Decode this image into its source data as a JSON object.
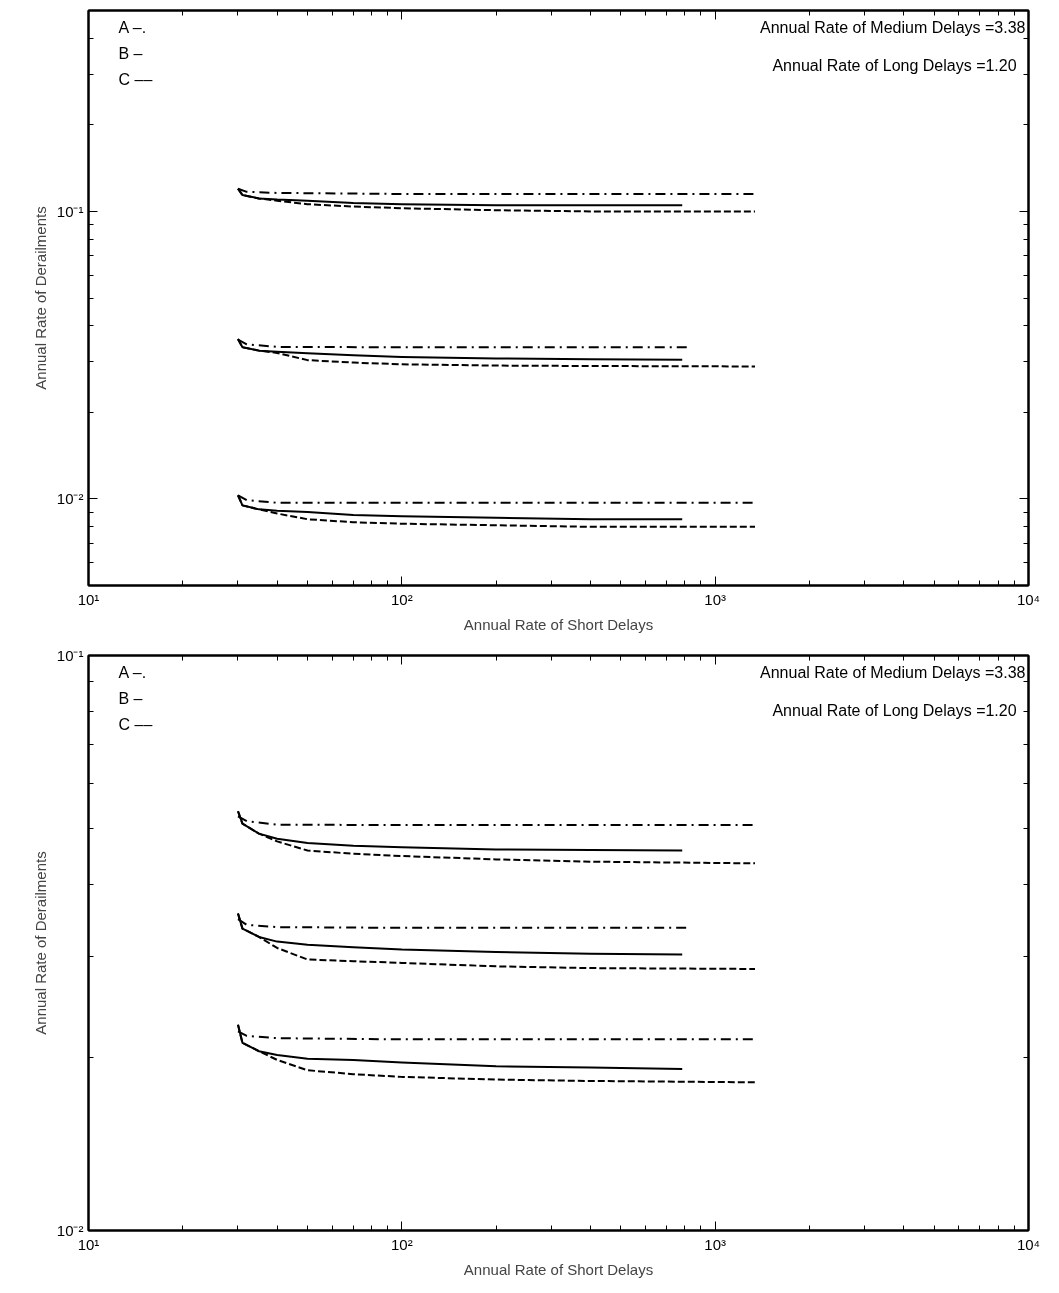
{
  "chart_data": [
    {
      "type": "line",
      "xlabel": "Annual Rate of Short Delays",
      "ylabel": "Annual Rate of Derailments",
      "annotations": [
        "A –.",
        "B –",
        "C ––",
        "Annual Rate of Medium Delays =3.38",
        "Annual Rate of Long Delays   =1.20"
      ],
      "log": "xy",
      "grid": false,
      "xlim": [
        10,
        10000
      ],
      "ylim": [
        0.005,
        0.5
      ],
      "xticks": [
        {
          "value": 10,
          "label": "10¹"
        },
        {
          "value": 20,
          "label": null
        },
        {
          "value": 30,
          "label": null
        },
        {
          "value": 40,
          "label": null
        },
        {
          "value": 50,
          "label": null
        },
        {
          "value": 60,
          "label": null
        },
        {
          "value": 70,
          "label": null
        },
        {
          "value": 80,
          "label": null
        },
        {
          "value": 90,
          "label": null
        },
        {
          "value": 100,
          "label": "10²"
        },
        {
          "value": 200,
          "label": null
        },
        {
          "value": 300,
          "label": null
        },
        {
          "value": 400,
          "label": null
        },
        {
          "value": 500,
          "label": null
        },
        {
          "value": 600,
          "label": null
        },
        {
          "value": 700,
          "label": null
        },
        {
          "value": 800,
          "label": null
        },
        {
          "value": 900,
          "label": null
        },
        {
          "value": 1000,
          "label": "10³"
        },
        {
          "value": 2000,
          "label": null
        },
        {
          "value": 3000,
          "label": null
        },
        {
          "value": 4000,
          "label": null
        },
        {
          "value": 5000,
          "label": null
        },
        {
          "value": 6000,
          "label": null
        },
        {
          "value": 7000,
          "label": null
        },
        {
          "value": 8000,
          "label": null
        },
        {
          "value": 9000,
          "label": null
        },
        {
          "value": 10000,
          "label": "10⁴"
        }
      ],
      "yticks": [
        {
          "value": 0.006,
          "label": null
        },
        {
          "value": 0.007,
          "label": null
        },
        {
          "value": 0.008,
          "label": null
        },
        {
          "value": 0.009,
          "label": null
        },
        {
          "value": 0.01,
          "label": "10⁻²"
        },
        {
          "value": 0.02,
          "label": null
        },
        {
          "value": 0.03,
          "label": null
        },
        {
          "value": 0.04,
          "label": null
        },
        {
          "value": 0.05,
          "label": null
        },
        {
          "value": 0.06,
          "label": null
        },
        {
          "value": 0.07,
          "label": null
        },
        {
          "value": 0.08,
          "label": null
        },
        {
          "value": 0.09,
          "label": null
        },
        {
          "value": 0.1,
          "label": "10⁻¹"
        },
        {
          "value": 0.2,
          "label": null
        },
        {
          "value": 0.3,
          "label": null
        },
        {
          "value": 0.4,
          "label": null
        }
      ],
      "series": [
        {
          "color": "#000000",
          "line_style": "dashdot",
          "x": [
            30,
            32,
            40,
            100,
            1340
          ],
          "values": [
            0.12,
            0.117,
            0.116,
            0.115,
            0.115
          ]
        },
        {
          "color": "#000000",
          "line_style": "solid",
          "x": [
            30,
            31,
            35,
            40,
            50,
            70,
            100,
            200,
            400,
            785
          ],
          "values": [
            0.12,
            0.114,
            0.111,
            0.11,
            0.109,
            0.107,
            0.106,
            0.105,
            0.105,
            0.105
          ]
        },
        {
          "color": "#000000",
          "line_style": "dashed",
          "x": [
            30,
            31,
            35,
            40,
            50,
            70,
            100,
            200,
            400,
            1340
          ],
          "values": [
            0.12,
            0.114,
            0.111,
            0.109,
            0.106,
            0.104,
            0.1026,
            0.101,
            0.1,
            0.1
          ]
        },
        {
          "color": "#000000",
          "line_style": "dashdot",
          "x": [
            30,
            32,
            40,
            100,
            830
          ],
          "values": [
            0.0358,
            0.0345,
            0.0338,
            0.0337,
            0.0337
          ]
        },
        {
          "color": "#000000",
          "line_style": "solid",
          "x": [
            30,
            31,
            35,
            40,
            50,
            70,
            100,
            200,
            400,
            785
          ],
          "values": [
            0.036,
            0.0337,
            0.0328,
            0.0325,
            0.0321,
            0.0316,
            0.0312,
            0.0308,
            0.0306,
            0.0305
          ]
        },
        {
          "color": "#000000",
          "line_style": "dashed",
          "x": [
            30,
            31,
            35,
            40,
            50,
            70,
            100,
            200,
            400,
            1340
          ],
          "values": [
            0.036,
            0.0337,
            0.0328,
            0.0322,
            0.0304,
            0.0298,
            0.0294,
            0.0291,
            0.029,
            0.0289
          ]
        },
        {
          "color": "#000000",
          "line_style": "dashdot",
          "x": [
            30,
            32,
            40,
            100,
            1340
          ],
          "values": [
            0.0103,
            0.0099,
            0.0097,
            0.0097,
            0.0097
          ]
        },
        {
          "color": "#000000",
          "line_style": "solid",
          "x": [
            30,
            31,
            35,
            40,
            50,
            70,
            100,
            200,
            400,
            785
          ],
          "values": [
            0.0103,
            0.0095,
            0.0092,
            0.0091,
            0.009,
            0.0088,
            0.0087,
            0.0086,
            0.0085,
            0.0085
          ]
        },
        {
          "color": "#000000",
          "line_style": "dashed",
          "x": [
            30,
            31,
            35,
            40,
            50,
            70,
            100,
            200,
            400,
            1340
          ],
          "values": [
            0.0103,
            0.0095,
            0.0092,
            0.0089,
            0.0085,
            0.0083,
            0.0082,
            0.0081,
            0.008,
            0.008
          ]
        }
      ]
    },
    {
      "type": "line",
      "xlabel": "Annual Rate of Short Delays",
      "ylabel": "Annual Rate of Derailments",
      "annotations": [
        "A –.",
        "B –",
        "C ––",
        "Annual Rate of Medium Delays =3.38",
        "Annual Rate of Long Delays   =1.20"
      ],
      "log": "xy",
      "grid": false,
      "xlim": [
        10,
        10000
      ],
      "ylim": [
        0.01,
        0.1
      ],
      "xticks": [
        {
          "value": 10,
          "label": "10¹"
        },
        {
          "value": 20,
          "label": null
        },
        {
          "value": 30,
          "label": null
        },
        {
          "value": 40,
          "label": null
        },
        {
          "value": 50,
          "label": null
        },
        {
          "value": 60,
          "label": null
        },
        {
          "value": 70,
          "label": null
        },
        {
          "value": 80,
          "label": null
        },
        {
          "value": 90,
          "label": null
        },
        {
          "value": 100,
          "label": "10²"
        },
        {
          "value": 200,
          "label": null
        },
        {
          "value": 300,
          "label": null
        },
        {
          "value": 400,
          "label": null
        },
        {
          "value": 500,
          "label": null
        },
        {
          "value": 600,
          "label": null
        },
        {
          "value": 700,
          "label": null
        },
        {
          "value": 800,
          "label": null
        },
        {
          "value": 900,
          "label": null
        },
        {
          "value": 1000,
          "label": "10³"
        },
        {
          "value": 2000,
          "label": null
        },
        {
          "value": 3000,
          "label": null
        },
        {
          "value": 4000,
          "label": null
        },
        {
          "value": 5000,
          "label": null
        },
        {
          "value": 6000,
          "label": null
        },
        {
          "value": 7000,
          "label": null
        },
        {
          "value": 8000,
          "label": null
        },
        {
          "value": 9000,
          "label": null
        },
        {
          "value": 10000,
          "label": "10⁴"
        }
      ],
      "yticks": [
        {
          "value": 0.01,
          "label": "10⁻²"
        },
        {
          "value": 0.02,
          "label": null
        },
        {
          "value": 0.03,
          "label": null
        },
        {
          "value": 0.04,
          "label": null
        },
        {
          "value": 0.05,
          "label": null
        },
        {
          "value": 0.06,
          "label": null
        },
        {
          "value": 0.07,
          "label": null
        },
        {
          "value": 0.08,
          "label": null
        },
        {
          "value": 0.09,
          "label": null
        },
        {
          "value": 0.1,
          "label": "10⁻¹"
        }
      ],
      "series": [
        {
          "color": "#000000",
          "line_style": "dashdot",
          "x": [
            30,
            32,
            40,
            100,
            1340
          ],
          "values": [
            0.0525,
            0.0515,
            0.0508,
            0.0507,
            0.0507
          ]
        },
        {
          "color": "#000000",
          "line_style": "solid",
          "x": [
            30,
            31,
            35,
            40,
            50,
            70,
            100,
            200,
            400,
            785
          ],
          "values": [
            0.0536,
            0.051,
            0.049,
            0.048,
            0.0472,
            0.0467,
            0.0464,
            0.046,
            0.0459,
            0.0458
          ]
        },
        {
          "color": "#000000",
          "line_style": "dashed",
          "x": [
            30,
            31,
            35,
            40,
            50,
            70,
            100,
            200,
            400,
            1340
          ],
          "values": [
            0.0536,
            0.051,
            0.049,
            0.0475,
            0.0458,
            0.0452,
            0.0448,
            0.0442,
            0.0438,
            0.0435
          ]
        },
        {
          "color": "#000000",
          "line_style": "dashdot",
          "x": [
            30,
            32,
            40,
            100,
            825
          ],
          "values": [
            0.0348,
            0.034,
            0.0337,
            0.0336,
            0.0336
          ]
        },
        {
          "color": "#000000",
          "line_style": "solid",
          "x": [
            30,
            31,
            35,
            40,
            50,
            70,
            100,
            200,
            400,
            785
          ],
          "values": [
            0.0356,
            0.0335,
            0.0324,
            0.0318,
            0.0314,
            0.0311,
            0.0308,
            0.0305,
            0.0303,
            0.0302
          ]
        },
        {
          "color": "#000000",
          "line_style": "dashed",
          "x": [
            30,
            31,
            35,
            40,
            50,
            70,
            100,
            200,
            400,
            1340
          ],
          "values": [
            0.0356,
            0.0335,
            0.0324,
            0.031,
            0.0296,
            0.0294,
            0.0292,
            0.0288,
            0.0286,
            0.0285
          ]
        },
        {
          "color": "#000000",
          "line_style": "dashdot",
          "x": [
            30,
            32,
            40,
            100,
            1340
          ],
          "values": [
            0.0222,
            0.0218,
            0.0216,
            0.0215,
            0.0215
          ]
        },
        {
          "color": "#000000",
          "line_style": "solid",
          "x": [
            30,
            31,
            35,
            40,
            50,
            70,
            100,
            200,
            400,
            785
          ],
          "values": [
            0.0228,
            0.0212,
            0.0205,
            0.0202,
            0.0199,
            0.0198,
            0.0196,
            0.0193,
            0.0192,
            0.0191
          ]
        },
        {
          "color": "#000000",
          "line_style": "dashed",
          "x": [
            30,
            31,
            35,
            40,
            50,
            70,
            100,
            200,
            400,
            1340
          ],
          "values": [
            0.0228,
            0.0212,
            0.0205,
            0.0198,
            0.019,
            0.0187,
            0.0185,
            0.0183,
            0.0182,
            0.0181
          ]
        }
      ]
    }
  ]
}
